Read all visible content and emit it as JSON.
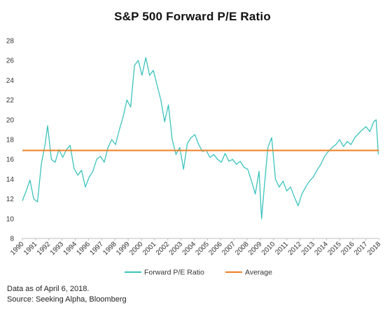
{
  "chart_data": {
    "type": "line",
    "title": "S&P 500 Forward P/E Ratio",
    "xlabel": "",
    "ylabel": "",
    "ylim": [
      8,
      28
    ],
    "yticks": [
      8,
      10,
      12,
      14,
      16,
      18,
      20,
      22,
      24,
      26,
      28
    ],
    "xlim": [
      1990,
      2018.3
    ],
    "xtick_labels": [
      "1990",
      "1991",
      "1992",
      "1993",
      "1994",
      "1996",
      "1997",
      "1998",
      "1999",
      "2000",
      "2001",
      "2002",
      "2003",
      "2004",
      "2005",
      "2006",
      "2007",
      "2008",
      "2009",
      "2010",
      "2011",
      "2012",
      "2013",
      "2014",
      "2015",
      "2016",
      "2017",
      "2018"
    ],
    "xtick_positions": [
      1990.0,
      1991.05,
      1992.1,
      1993.15,
      1994.2,
      1995.25,
      1996.3,
      1997.35,
      1998.4,
      1999.45,
      2000.5,
      2001.55,
      2002.6,
      2003.65,
      2004.7,
      2005.75,
      2006.8,
      2007.85,
      2008.9,
      2009.95,
      2011.0,
      2012.05,
      2013.1,
      2014.15,
      2015.2,
      2016.25,
      2017.3,
      2018.35
    ],
    "grid": false,
    "legend_position": "bottom",
    "series": [
      {
        "name": "Forward P/E Ratio",
        "color": "#3cc3bd",
        "x": [
          1990.0,
          1990.3,
          1990.6,
          1990.9,
          1991.2,
          1991.5,
          1991.8,
          1992.0,
          1992.3,
          1992.6,
          1992.9,
          1993.2,
          1993.5,
          1993.8,
          1994.1,
          1994.4,
          1994.7,
          1995.0,
          1995.3,
          1995.6,
          1995.9,
          1996.2,
          1996.5,
          1996.8,
          1997.1,
          1997.4,
          1997.7,
          1998.0,
          1998.3,
          1998.6,
          1998.9,
          1999.2,
          1999.5,
          1999.8,
          2000.1,
          2000.4,
          2000.7,
          2001.0,
          2001.3,
          2001.6,
          2001.9,
          2002.2,
          2002.5,
          2002.8,
          2003.1,
          2003.4,
          2003.7,
          2004.0,
          2004.3,
          2004.6,
          2004.9,
          2005.2,
          2005.5,
          2005.8,
          2006.1,
          2006.4,
          2006.7,
          2007.0,
          2007.3,
          2007.6,
          2007.9,
          2008.2,
          2008.5,
          2008.8,
          2009.0,
          2009.2,
          2009.5,
          2009.8,
          2010.1,
          2010.4,
          2010.7,
          2011.0,
          2011.3,
          2011.6,
          2011.9,
          2012.2,
          2012.5,
          2012.8,
          2013.1,
          2013.4,
          2013.7,
          2014.0,
          2014.3,
          2014.6,
          2014.9,
          2015.2,
          2015.5,
          2015.8,
          2016.1,
          2016.4,
          2016.7,
          2017.0,
          2017.3,
          2017.6,
          2017.9,
          2018.1,
          2018.27
        ],
        "values": [
          11.8,
          12.8,
          13.9,
          12.0,
          11.7,
          15.5,
          17.5,
          19.4,
          16.0,
          15.7,
          17.0,
          16.2,
          17.0,
          17.4,
          15.1,
          14.4,
          14.9,
          13.2,
          14.2,
          14.8,
          16.0,
          16.3,
          15.7,
          17.2,
          18.0,
          17.5,
          19.0,
          20.3,
          22.0,
          21.3,
          25.5,
          26.0,
          24.5,
          26.3,
          24.5,
          25.0,
          23.5,
          22.0,
          19.8,
          21.5,
          18.0,
          16.5,
          17.2,
          15.0,
          17.6,
          18.2,
          18.5,
          17.5,
          16.8,
          16.9,
          16.2,
          16.5,
          16.0,
          15.7,
          16.6,
          15.8,
          16.0,
          15.5,
          15.8,
          15.2,
          15.0,
          13.8,
          12.5,
          14.8,
          10.0,
          13.0,
          17.2,
          18.2,
          14.0,
          13.2,
          13.8,
          12.8,
          13.2,
          12.2,
          11.3,
          12.5,
          13.2,
          13.8,
          14.2,
          14.9,
          15.5,
          16.3,
          16.8,
          17.2,
          17.5,
          18.0,
          17.3,
          17.8,
          17.5,
          18.2,
          18.6,
          19.0,
          19.3,
          18.8,
          19.8,
          20.0,
          16.5
        ]
      },
      {
        "name": "Average",
        "color": "#f07f25",
        "x": [
          1990.0,
          2018.3
        ],
        "values": [
          16.9,
          16.9
        ]
      }
    ]
  },
  "notes": {
    "date": "Data as of April 6, 2018.",
    "source": "Source: Seeking Alpha, Bloomberg"
  }
}
